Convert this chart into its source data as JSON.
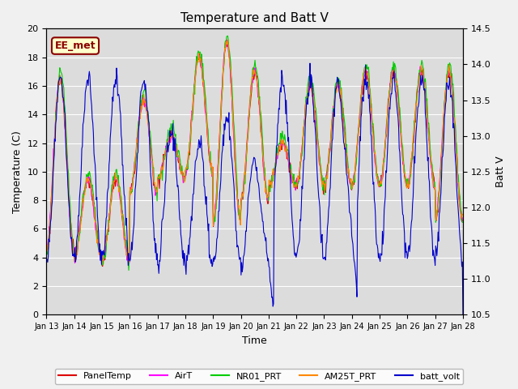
{
  "title": "Temperature and Batt V",
  "xlabel": "Time",
  "ylabel_left": "Temperature (C)",
  "ylabel_right": "Batt V",
  "annotation": "EE_met",
  "ylim_left": [
    0,
    20
  ],
  "ylim_right": [
    10.5,
    14.5
  ],
  "xtick_labels": [
    "Jan 13",
    "Jan 14",
    "Jan 15",
    "Jan 16",
    "Jan 17",
    "Jan 18",
    "Jan 19",
    "Jan 20",
    "Jan 21",
    "Jan 22",
    "Jan 23",
    "Jan 24",
    "Jan 25",
    "Jan 26",
    "Jan 27",
    "Jan 28"
  ],
  "yticks_left": [
    0,
    2,
    4,
    6,
    8,
    10,
    12,
    14,
    16,
    18,
    20
  ],
  "yticks_right": [
    10.5,
    11.0,
    11.5,
    12.0,
    12.5,
    13.0,
    13.5,
    14.0,
    14.5
  ],
  "legend_entries": [
    "PanelTemp",
    "AirT",
    "NR01_PRT",
    "AM25T_PRT",
    "batt_volt"
  ],
  "legend_colors": [
    "#dd0000",
    "#ff00ff",
    "#00cc00",
    "#ff8800",
    "#0000cc"
  ],
  "series_colors": {
    "PanelTemp": "#dd0000",
    "AirT": "#ff00ff",
    "NR01_PRT": "#00cc00",
    "AM25T_PRT": "#ff8800",
    "batt_volt": "#0000cc"
  },
  "plot_bg": "#dcdcdc",
  "fig_bg": "#f0f0f0",
  "grid_color": "#ffffff",
  "figsize": [
    6.4,
    4.8
  ],
  "dpi": 100
}
